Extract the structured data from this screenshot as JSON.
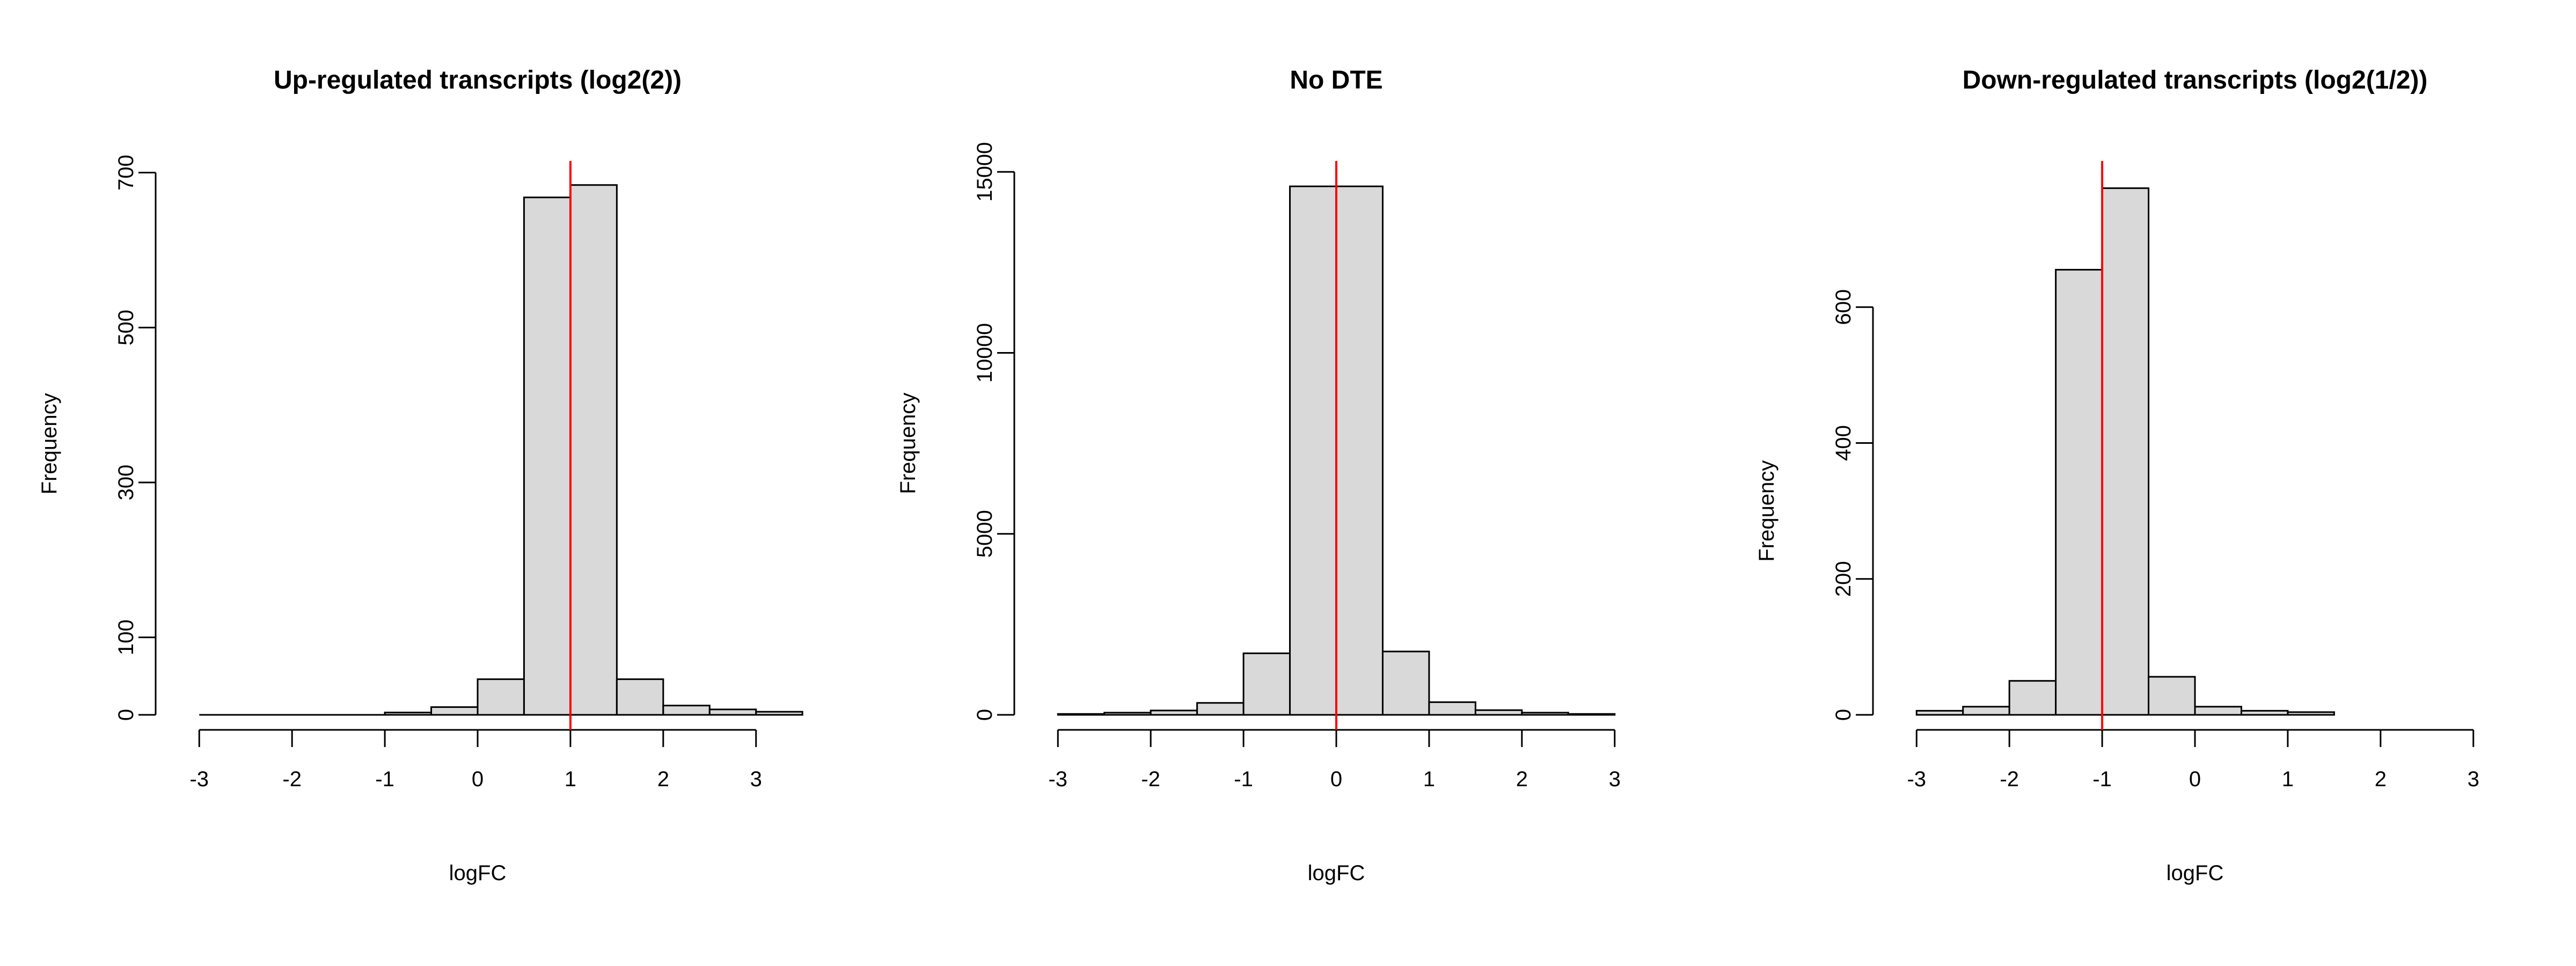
{
  "page": {
    "background": "#ffffff",
    "text_color": "#000000"
  },
  "chart_data": [
    {
      "type": "histogram",
      "title": "Up-regulated transcripts (log2(2))",
      "xlabel": "logFC",
      "ylabel": "Frequency",
      "bar_fill": "#d9d9d9",
      "bar_stroke": "#000000",
      "axis_color": "#000000",
      "refline": {
        "x": 1,
        "color": "#ff0000"
      },
      "xlim": [
        -3.47,
        3.47
      ],
      "ylim": [
        0,
        715
      ],
      "xticks": {
        "values": [
          -3,
          -2,
          -1,
          0,
          1,
          2,
          3
        ],
        "labels": [
          "-3",
          "-2",
          "-1",
          "0",
          "1",
          "2",
          "3"
        ]
      },
      "yticks": {
        "values": [
          0,
          100,
          300,
          500,
          700
        ],
        "labels": [
          "0",
          "100",
          "300",
          "500",
          "700"
        ]
      },
      "bins": [
        {
          "x0": -3.0,
          "x1": -2.5,
          "count": 0
        },
        {
          "x0": -2.5,
          "x1": -2.0,
          "count": 0
        },
        {
          "x0": -2.0,
          "x1": -1.5,
          "count": 0
        },
        {
          "x0": -1.5,
          "x1": -1.0,
          "count": 0
        },
        {
          "x0": -1.0,
          "x1": -0.5,
          "count": 3
        },
        {
          "x0": -0.5,
          "x1": 0.0,
          "count": 10
        },
        {
          "x0": 0.0,
          "x1": 0.5,
          "count": 46
        },
        {
          "x0": 0.5,
          "x1": 1.0,
          "count": 668
        },
        {
          "x0": 1.0,
          "x1": 1.5,
          "count": 684
        },
        {
          "x0": 1.5,
          "x1": 2.0,
          "count": 46
        },
        {
          "x0": 2.0,
          "x1": 2.5,
          "count": 12
        },
        {
          "x0": 2.5,
          "x1": 3.0,
          "count": 7
        },
        {
          "x0": 3.0,
          "x1": 3.5,
          "count": 4
        }
      ]
    },
    {
      "type": "histogram",
      "title": "No DTE",
      "xlabel": "logFC",
      "ylabel": "Frequency",
      "bar_fill": "#d9d9d9",
      "bar_stroke": "#000000",
      "axis_color": "#000000",
      "refline": {
        "x": 0,
        "color": "#ff0000"
      },
      "xlim": [
        -3.47,
        3.47
      ],
      "ylim": [
        0,
        15300
      ],
      "xticks": {
        "values": [
          -3,
          -2,
          -1,
          0,
          1,
          2,
          3
        ],
        "labels": [
          "-3",
          "-2",
          "-1",
          "0",
          "1",
          "2",
          "3"
        ]
      },
      "yticks": {
        "values": [
          0,
          5000,
          10000,
          15000
        ],
        "labels": [
          "0",
          "5000",
          "10000",
          "15000"
        ]
      },
      "bins": [
        {
          "x0": -3.0,
          "x1": -2.5,
          "count": 25
        },
        {
          "x0": -2.5,
          "x1": -2.0,
          "count": 60
        },
        {
          "x0": -2.0,
          "x1": -1.5,
          "count": 120
        },
        {
          "x0": -1.5,
          "x1": -1.0,
          "count": 330
        },
        {
          "x0": -1.0,
          "x1": -0.5,
          "count": 1700
        },
        {
          "x0": -0.5,
          "x1": 0.0,
          "count": 14600
        },
        {
          "x0": 0.0,
          "x1": 0.5,
          "count": 14600
        },
        {
          "x0": 0.5,
          "x1": 1.0,
          "count": 1750
        },
        {
          "x0": 1.0,
          "x1": 1.5,
          "count": 350
        },
        {
          "x0": 1.5,
          "x1": 2.0,
          "count": 130
        },
        {
          "x0": 2.0,
          "x1": 2.5,
          "count": 60
        },
        {
          "x0": 2.5,
          "x1": 3.0,
          "count": 25
        }
      ]
    },
    {
      "type": "histogram",
      "title": "Down-regulated transcripts (log2(1/2))",
      "xlabel": "logFC",
      "ylabel": "Frequency",
      "bar_fill": "#d9d9d9",
      "bar_stroke": "#000000",
      "axis_color": "#000000",
      "refline": {
        "x": -1,
        "color": "#ff0000"
      },
      "xlim": [
        -3.47,
        3.47
      ],
      "ylim": [
        0,
        815
      ],
      "xticks": {
        "values": [
          -3,
          -2,
          -1,
          0,
          1,
          2,
          3
        ],
        "labels": [
          "-3",
          "-2",
          "-1",
          "0",
          "1",
          "2",
          "3"
        ]
      },
      "yticks": {
        "values": [
          0,
          200,
          400,
          600
        ],
        "labels": [
          "0",
          "200",
          "400",
          "600"
        ]
      },
      "bins": [
        {
          "x0": -3.0,
          "x1": -2.5,
          "count": 6
        },
        {
          "x0": -2.5,
          "x1": -2.0,
          "count": 12
        },
        {
          "x0": -2.0,
          "x1": -1.5,
          "count": 50
        },
        {
          "x0": -1.5,
          "x1": -1.0,
          "count": 655
        },
        {
          "x0": -1.0,
          "x1": -0.5,
          "count": 775
        },
        {
          "x0": -0.5,
          "x1": 0.0,
          "count": 56
        },
        {
          "x0": 0.0,
          "x1": 0.5,
          "count": 12
        },
        {
          "x0": 0.5,
          "x1": 1.0,
          "count": 6
        },
        {
          "x0": 1.0,
          "x1": 1.5,
          "count": 4
        }
      ]
    }
  ]
}
